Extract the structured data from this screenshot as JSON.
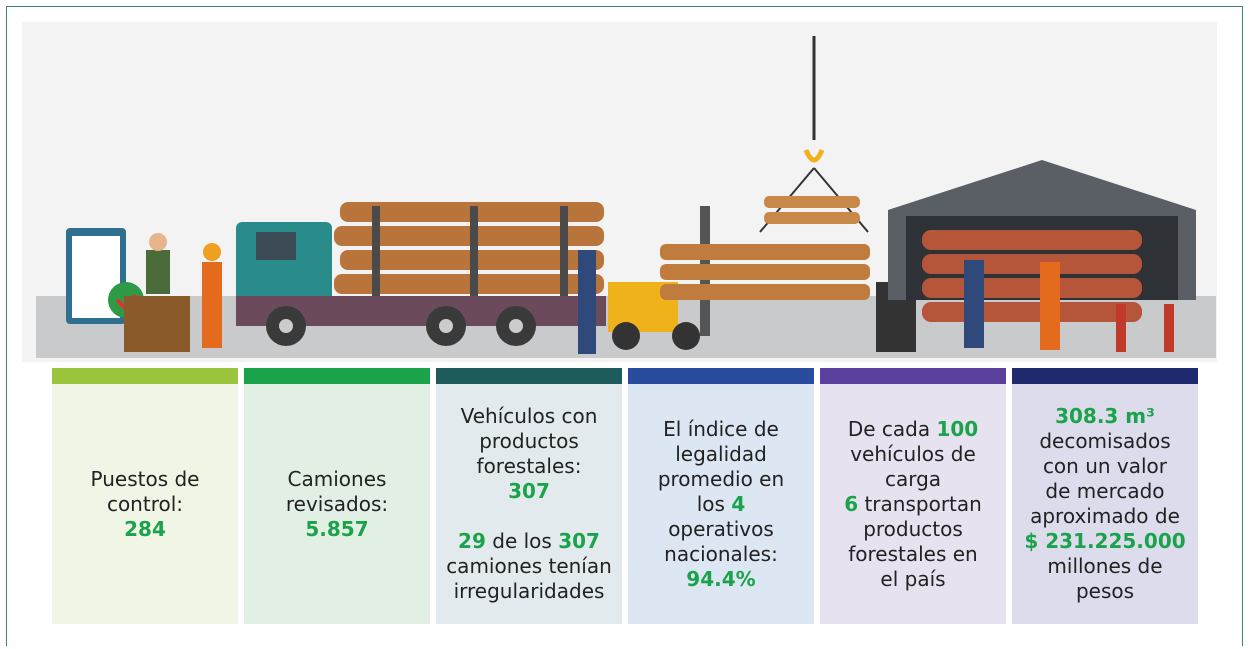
{
  "cards": [
    {
      "paragraphs": [
        [
          [
            "Puestos de"
          ],
          [
            "control:"
          ],
          [
            {
              "text": "284",
              "bold": true
            }
          ]
        ]
      ]
    },
    {
      "paragraphs": [
        [
          [
            "Camiones"
          ],
          [
            "revisados:"
          ],
          [
            {
              "text": "5.857",
              "bold": true
            }
          ]
        ]
      ]
    },
    {
      "paragraphs": [
        [
          [
            "Vehículos con"
          ],
          [
            "productos"
          ],
          [
            "forestales:"
          ],
          [
            {
              "text": "307",
              "bold": true
            }
          ]
        ],
        [
          [
            {
              "text": "29",
              "bold": true
            },
            " de los ",
            {
              "text": "307",
              "bold": true
            }
          ],
          [
            "camiones tenían"
          ],
          [
            "irregularidades"
          ]
        ]
      ]
    },
    {
      "paragraphs": [
        [
          [
            "El índice de"
          ],
          [
            "legalidad"
          ],
          [
            "promedio en"
          ],
          [
            "los ",
            {
              "text": "4",
              "bold": true
            }
          ],
          [
            "operativos"
          ],
          [
            "nacionales:"
          ],
          [
            {
              "text": "94.4%",
              "bold": true
            }
          ]
        ]
      ]
    },
    {
      "paragraphs": [
        [
          [
            "De cada ",
            {
              "text": "100",
              "bold": true
            }
          ],
          [
            "vehículos de"
          ],
          [
            "carga"
          ],
          [
            {
              "text": "6",
              "bold": true
            },
            " transportan"
          ],
          [
            "productos"
          ],
          [
            "forestales en"
          ],
          [
            "el país"
          ]
        ]
      ]
    },
    {
      "paragraphs": [
        [
          [
            {
              "text": "308.3 m³",
              "bold": true
            }
          ],
          [
            "decomisados"
          ],
          [
            "con un valor"
          ],
          [
            "de mercado"
          ],
          [
            "aproximado de"
          ],
          [
            {
              "text": "$ 231.225.000",
              "bold": true
            }
          ],
          [
            "millones de"
          ],
          [
            "pesos"
          ]
        ]
      ]
    }
  ]
}
